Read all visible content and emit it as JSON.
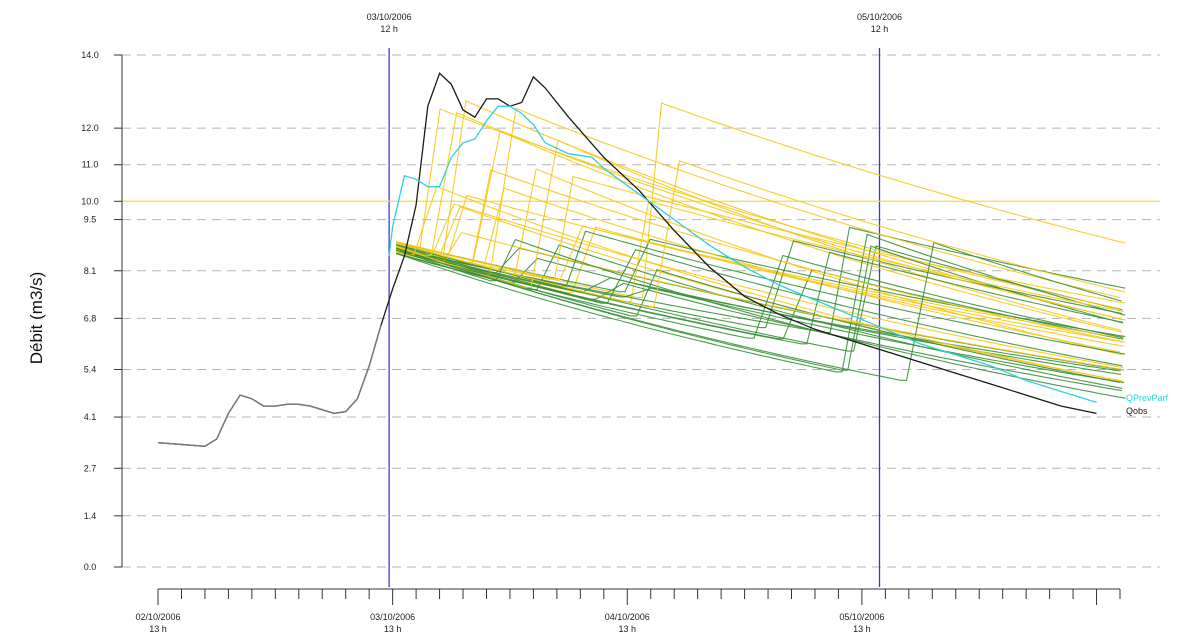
{
  "chart_data": {
    "type": "line",
    "ylabel": "Débit (m3/s)",
    "ylim": [
      0,
      14
    ],
    "y_ticks": [
      "0.0",
      "1.4",
      "2.7",
      "4.1",
      "5.4",
      "6.8",
      "8.1",
      "9.5",
      "10.0",
      "11.0",
      "12.0",
      "14.0"
    ],
    "x_unit": "hours since 02/10/2006 13 h",
    "xlim": [
      0,
      82
    ],
    "x_ticks_bottom": [
      {
        "date": "02/10/2006",
        "hour": "13 h"
      },
      {
        "date": "03/10/2006",
        "hour": "13 h"
      },
      {
        "date": "04/10/2006",
        "hour": "13 h"
      },
      {
        "date": "05/10/2006",
        "hour": "13 h"
      }
    ],
    "x_ticks_top": [
      {
        "date": "03/10/2006",
        "hour": "12 h"
      },
      {
        "date": "05/10/2006",
        "hour": "12 h"
      }
    ],
    "threshold": {
      "value": 10.0,
      "color": "#f3dc3c"
    },
    "vertical_markers": [
      {
        "x": 19.7,
        "color": "#3b3bd1"
      },
      {
        "x": 61.5,
        "color": "#3b3bd1"
      }
    ],
    "ensemble_colors": [
      "#f5c81a",
      "#3a8f3a"
    ],
    "series": [
      {
        "name": "Qobs",
        "color": "#1a1a1a",
        "x": [
          0,
          4,
          5,
          6,
          7,
          8,
          9,
          10,
          11,
          12,
          13,
          14,
          15,
          16,
          17,
          18,
          19,
          20,
          21,
          22,
          23,
          24,
          25,
          26,
          27,
          28,
          29,
          30,
          31,
          32,
          33,
          35,
          38,
          41,
          44,
          47,
          50,
          53,
          56,
          59,
          62,
          65,
          68,
          71,
          74,
          77,
          80
        ],
        "y": [
          3.4,
          3.3,
          3.5,
          4.2,
          4.7,
          4.6,
          4.4,
          4.4,
          4.45,
          4.45,
          4.4,
          4.3,
          4.2,
          4.25,
          4.6,
          5.5,
          6.6,
          7.6,
          8.5,
          9.9,
          12.6,
          13.5,
          13.2,
          12.5,
          12.3,
          12.8,
          12.8,
          12.6,
          12.7,
          13.4,
          13.1,
          12.3,
          11.2,
          10.3,
          9.2,
          8.2,
          7.4,
          6.9,
          6.5,
          6.2,
          5.9,
          5.6,
          5.3,
          5.0,
          4.7,
          4.4,
          4.2
        ]
      },
      {
        "name": "QPrevParf",
        "color": "#2fd0dc",
        "x": [
          19.7,
          20,
          21,
          22,
          23,
          24,
          25,
          26,
          27,
          28,
          29,
          30,
          31,
          32,
          33,
          35,
          37,
          38,
          41,
          44,
          47,
          50,
          53,
          56,
          59,
          62,
          65,
          68,
          71,
          74,
          77,
          80
        ],
        "y": [
          8.5,
          9.3,
          10.7,
          10.6,
          10.4,
          10.4,
          11.2,
          11.6,
          11.7,
          12.2,
          12.6,
          12.6,
          12.4,
          12.1,
          11.6,
          11.3,
          11.2,
          10.9,
          10.2,
          9.5,
          8.8,
          8.2,
          7.7,
          7.3,
          6.9,
          6.5,
          6.1,
          5.8,
          5.5,
          5.1,
          4.8,
          4.5
        ]
      }
    ]
  }
}
